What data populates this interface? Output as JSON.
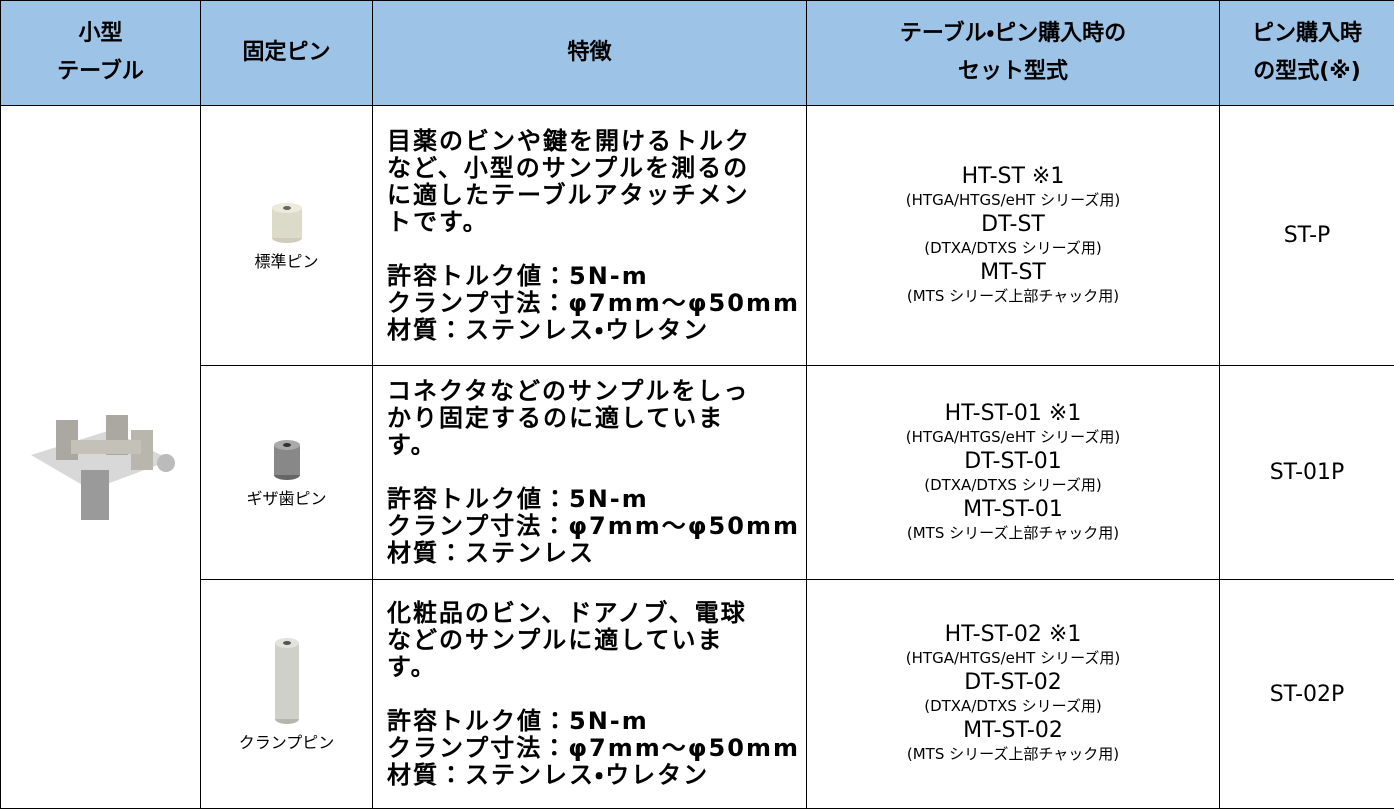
{
  "table": {
    "header": [
      [
        "小型",
        "テーブル"
      ],
      [
        "固定ピン"
      ],
      [
        "特徴"
      ],
      [
        "テーブル・ピン購入時の",
        "セット型式"
      ],
      [
        "ピン購入時",
        "の型式(※)"
      ]
    ],
    "rows": [
      {
        "pin": "標準ピン",
        "features": [
          "目薬のビンや鍵を開けるトルク",
          "など、小型のサンプルを測るの",
          "に適したテーブルアタッチメン",
          "トです。"
        ],
        "specs": [
          "許容トルク値：5N-m",
          "クランプ寸法：φ7mm～φ50mm",
          "材質：ステンレス・ウレタン"
        ],
        "set_models": [
          {
            "model": "HT-ST ※1",
            "note": "(HTGA/HTGS/eHT シリーズ用)"
          },
          {
            "model": "DT-ST",
            "note": "(DTXA/DTXS シリーズ用)"
          },
          {
            "model": "MT-ST",
            "note": "(MTS シリーズ上部チャック用)"
          }
        ],
        "pin_model": "ST-P"
      },
      {
        "pin": "ギザ歯ピン",
        "features": [
          "コネクタなどのサンプルをしっ",
          "かり固定するのに適していま",
          "す。"
        ],
        "specs": [
          "許容トルク値：5N-m",
          "クランプ寸法：φ7mm～φ50mm",
          "材質：ステンレス"
        ],
        "set_models": [
          {
            "model": "HT-ST-01 ※1",
            "note": "(HTGA/HTGS/eHT シリーズ用)"
          },
          {
            "model": "DT-ST-01",
            "note": "(DTXA/DTXS シリーズ用)"
          },
          {
            "model": "MT-ST-01",
            "note": "(MTS シリーズ上部チャック用)"
          }
        ],
        "pin_model": "ST-01P"
      },
      {
        "pin": "クランプピン",
        "features": [
          "化粧品のビン、ドアノブ、電球",
          "などのサンプルに適していま",
          "す。"
        ],
        "specs": [
          "許容トルク値：5N-m",
          "クランプ寸法：φ7mm～φ50mm",
          "材質：ステンレス・ウレタン"
        ],
        "set_models": [
          {
            "model": "HT-ST-02 ※1",
            "note": "(HTGA/HTGS/eHT シリーズ用)"
          },
          {
            "model": "DT-ST-02",
            "note": "(DTXA/DTXS シリーズ用)"
          },
          {
            "model": "MT-ST-02",
            "note": "(MTS シリーズ上部チャック用)"
          }
        ],
        "pin_model": "ST-02P"
      }
    ]
  }
}
